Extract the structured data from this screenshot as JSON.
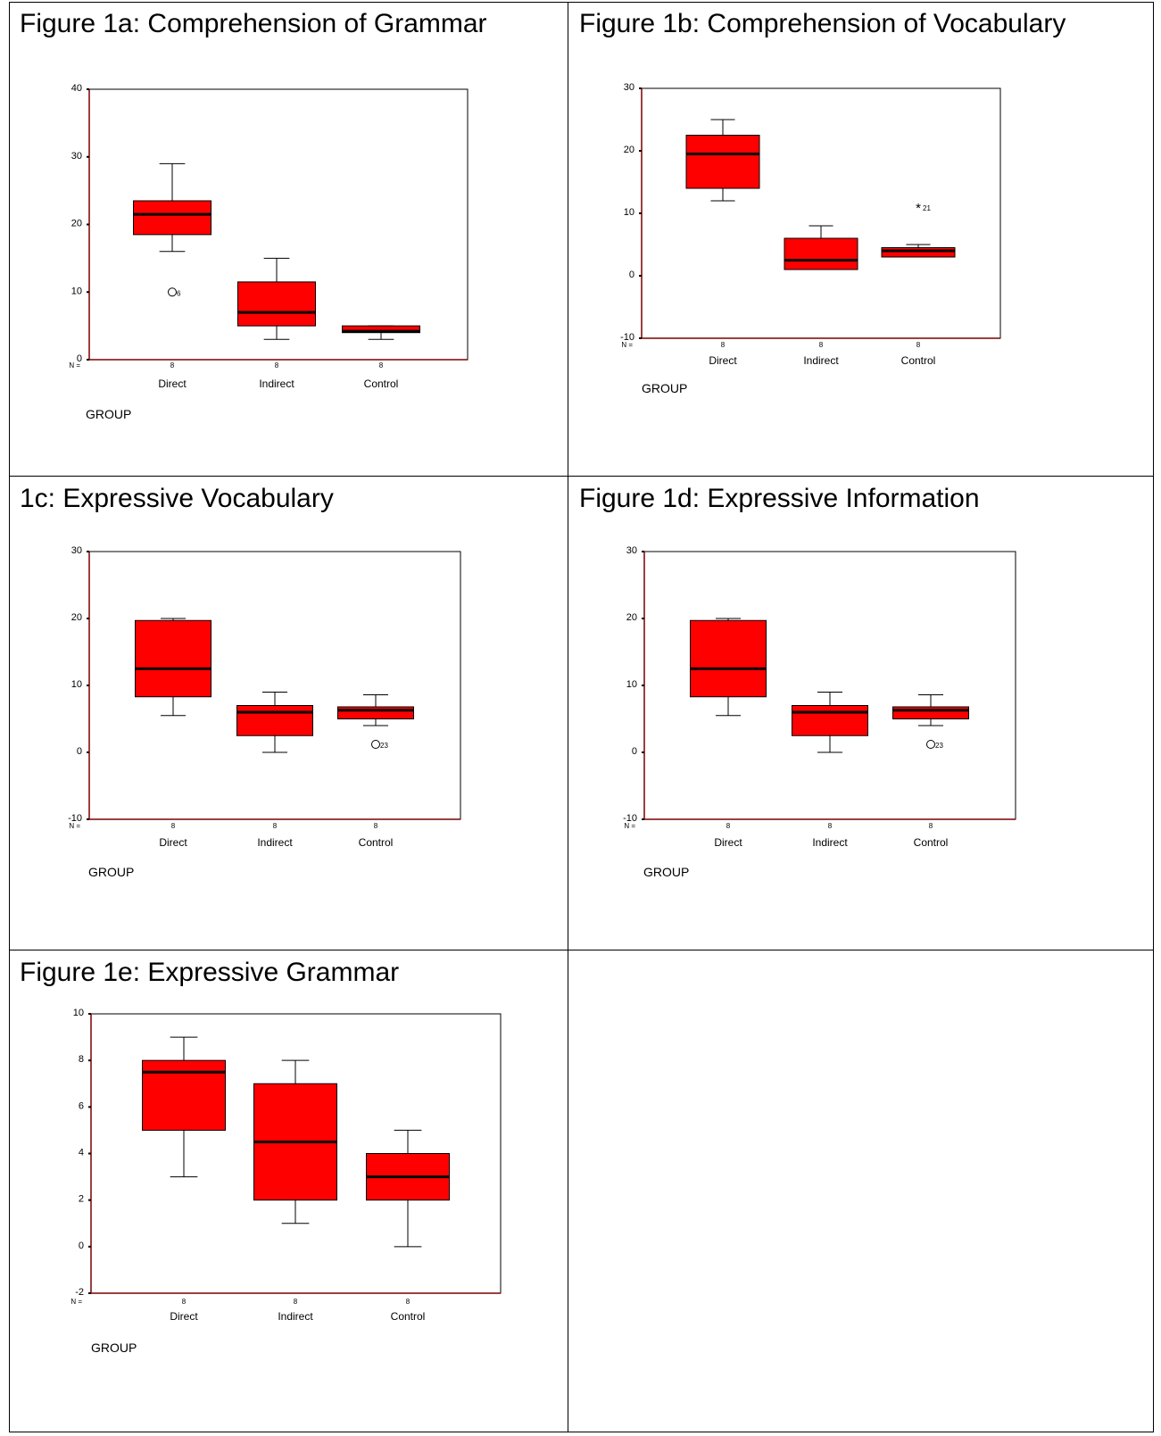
{
  "colors": {
    "box_fill": "#ff0000",
    "stroke": "#000000",
    "axis_left": "#7a0000"
  },
  "axis_common": {
    "n_label": "N =",
    "group_label": "GROUP"
  },
  "chart_data": [
    {
      "id": "1a",
      "title": "Figure 1a: Comprehension of Grammar",
      "type": "boxplot",
      "xlabel": "GROUP",
      "ylim": [
        0,
        40
      ],
      "yticks": [
        0,
        10,
        20,
        30,
        40
      ],
      "categories": [
        "Direct",
        "Indirect",
        "Control"
      ],
      "n": [
        "8",
        "8",
        "8"
      ],
      "boxes": [
        {
          "min": 16,
          "q1": 18.5,
          "median": 21.5,
          "q3": 23.5,
          "max": 29
        },
        {
          "min": 3,
          "q1": 5,
          "median": 7,
          "q3": 11.5,
          "max": 15
        },
        {
          "min": 3,
          "q1": 4,
          "median": 4.2,
          "q3": 5,
          "max": 5
        }
      ],
      "outliers": [
        {
          "group": 0,
          "value": 10,
          "marker": "circle",
          "label": "6"
        }
      ]
    },
    {
      "id": "1b",
      "title": "Figure 1b: Comprehension of Vocabulary",
      "type": "boxplot",
      "xlabel": "GROUP",
      "ylim": [
        -10,
        30
      ],
      "yticks": [
        -10,
        0,
        10,
        20,
        30
      ],
      "categories": [
        "Direct",
        "Indirect",
        "Control"
      ],
      "n": [
        "8",
        "8",
        "8"
      ],
      "boxes": [
        {
          "min": 12,
          "q1": 14,
          "median": 19.5,
          "q3": 22.5,
          "max": 25
        },
        {
          "min": 1,
          "q1": 1,
          "median": 2.5,
          "q3": 6,
          "max": 8
        },
        {
          "min": 3,
          "q1": 3,
          "median": 4,
          "q3": 4.5,
          "max": 5
        }
      ],
      "outliers": [
        {
          "group": 2,
          "value": 11,
          "marker": "star",
          "label": "21"
        }
      ]
    },
    {
      "id": "1c",
      "title": "1c: Expressive Vocabulary",
      "type": "boxplot",
      "xlabel": "GROUP",
      "ylim": [
        -10,
        30
      ],
      "yticks": [
        -10,
        0,
        10,
        20,
        30
      ],
      "categories": [
        "Direct",
        "Indirect",
        "Control"
      ],
      "n": [
        "8",
        "8",
        "8"
      ],
      "boxes": [
        {
          "min": 5.5,
          "q1": 8.3,
          "median": 12.5,
          "q3": 19.7,
          "max": 20
        },
        {
          "min": 0,
          "q1": 2.5,
          "median": 6,
          "q3": 7,
          "max": 9
        },
        {
          "min": 4,
          "q1": 5,
          "median": 6.3,
          "q3": 6.8,
          "max": 8.6
        }
      ],
      "outliers": [
        {
          "group": 2,
          "value": 1.2,
          "marker": "circle",
          "label": "23"
        }
      ]
    },
    {
      "id": "1d",
      "title": "Figure 1d: Expressive Information",
      "type": "boxplot",
      "xlabel": "GROUP",
      "ylim": [
        -10,
        30
      ],
      "yticks": [
        -10,
        0,
        10,
        20,
        30
      ],
      "categories": [
        "Direct",
        "Indirect",
        "Control"
      ],
      "n": [
        "8",
        "8",
        "8"
      ],
      "boxes": [
        {
          "min": 5.5,
          "q1": 8.3,
          "median": 12.5,
          "q3": 19.7,
          "max": 20
        },
        {
          "min": 0,
          "q1": 2.5,
          "median": 6,
          "q3": 7,
          "max": 9
        },
        {
          "min": 4,
          "q1": 5,
          "median": 6.3,
          "q3": 6.8,
          "max": 8.6
        }
      ],
      "outliers": [
        {
          "group": 2,
          "value": 1.2,
          "marker": "circle",
          "label": "23"
        }
      ]
    },
    {
      "id": "1e",
      "title": "Figure 1e: Expressive Grammar",
      "type": "boxplot",
      "xlabel": "GROUP",
      "ylim": [
        -2,
        10
      ],
      "yticks": [
        -2,
        0,
        2,
        4,
        6,
        8,
        10
      ],
      "categories": [
        "Direct",
        "Indirect",
        "Control"
      ],
      "n": [
        "8",
        "8",
        "8"
      ],
      "boxes": [
        {
          "min": 3,
          "q1": 5,
          "median": 7.5,
          "q3": 8,
          "max": 9
        },
        {
          "min": 1,
          "q1": 2,
          "median": 4.5,
          "q3": 7,
          "max": 8
        },
        {
          "min": 0,
          "q1": 2,
          "median": 3,
          "q3": 4,
          "max": 5
        }
      ],
      "outliers": []
    }
  ]
}
